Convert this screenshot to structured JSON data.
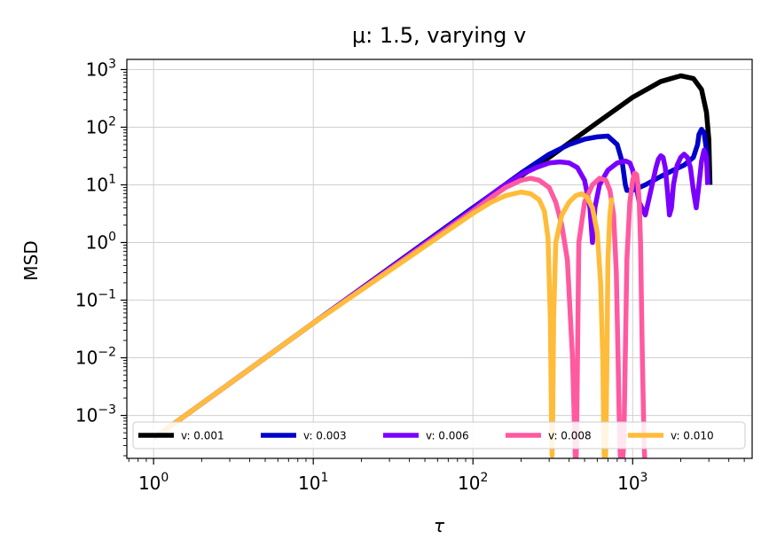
{
  "chart_data": {
    "type": "line",
    "title": "μ: 1.5, varying v",
    "xlabel": "τ",
    "ylabel": "MSD",
    "xscale": "log",
    "yscale": "log",
    "xlim": [
      0.68,
      5600
    ],
    "ylim": [
      0.00018,
      1500
    ],
    "grid": true,
    "legend_position": "lower",
    "x_ticks": [
      {
        "mant": "10",
        "exp": "0",
        "value": 1
      },
      {
        "mant": "10",
        "exp": "1",
        "value": 10
      },
      {
        "mant": "10",
        "exp": "2",
        "value": 100
      },
      {
        "mant": "10",
        "exp": "3",
        "value": 1000
      }
    ],
    "y_ticks": [
      {
        "mant": "10",
        "exp": "−3",
        "value": 0.001
      },
      {
        "mant": "10",
        "exp": "−2",
        "value": 0.01
      },
      {
        "mant": "10",
        "exp": "−1",
        "value": 0.1
      },
      {
        "mant": "10",
        "exp": "0",
        "value": 1
      },
      {
        "mant": "10",
        "exp": "1",
        "value": 10
      },
      {
        "mant": "10",
        "exp": "2",
        "value": 100
      },
      {
        "mant": "10",
        "exp": "3",
        "value": 1000
      }
    ],
    "series": [
      {
        "name": "v: 0.001",
        "color": "#000000",
        "x": [
          1,
          10,
          100,
          300,
          600,
          1000,
          1500,
          2000,
          2400,
          2700,
          2900,
          3000,
          3050
        ],
        "y": [
          0.0004,
          0.04,
          4,
          30,
          120,
          330,
          620,
          780,
          700,
          450,
          180,
          60,
          10
        ]
      },
      {
        "name": "v: 0.003",
        "color": "#0000c8",
        "x": [
          1,
          10,
          100,
          200,
          300,
          400,
          500,
          600,
          700,
          800,
          860,
          900,
          920,
          1000,
          1200,
          1500,
          1800,
          2100,
          2400,
          2550,
          2600,
          2700,
          2800,
          2900,
          2950,
          3000
        ],
        "y": [
          0.0004,
          0.04,
          4,
          16,
          34,
          50,
          62,
          68,
          70,
          50,
          25,
          10,
          8,
          8,
          10,
          14,
          18,
          22,
          30,
          50,
          75,
          92,
          80,
          40,
          15,
          10
        ]
      },
      {
        "name": "v: 0.006",
        "color": "#7a00ff",
        "x": [
          1,
          10,
          100,
          150,
          200,
          250,
          300,
          350,
          400,
          450,
          500,
          540,
          560,
          580,
          620,
          700,
          800,
          900,
          960,
          1000,
          1100,
          1200,
          1300,
          1400,
          1450,
          1500,
          1550,
          1600,
          1650,
          1700,
          1750,
          1800,
          1900,
          2000,
          2100,
          2200,
          2300,
          2400,
          2500,
          2600,
          2700,
          2800,
          2900,
          2950
        ],
        "y": [
          0.0004,
          0.04,
          3.8,
          9,
          15,
          20,
          24,
          25,
          24,
          20,
          12,
          4,
          1,
          4,
          10,
          18,
          24,
          26,
          24,
          18,
          5,
          3,
          8,
          20,
          28,
          32,
          30,
          20,
          8,
          3,
          4,
          10,
          22,
          30,
          34,
          30,
          20,
          8,
          4,
          10,
          26,
          40,
          30,
          10
        ]
      },
      {
        "name": "v: 0.008",
        "color": "#ff5aa0",
        "x": [
          1,
          10,
          100,
          130,
          160,
          200,
          230,
          260,
          300,
          330,
          360,
          390,
          420,
          435,
          440,
          445,
          460,
          500,
          560,
          620,
          680,
          720,
          760,
          790,
          810,
          830,
          850,
          880,
          920,
          960,
          1000,
          1030,
          1060,
          1080,
          1100,
          1120,
          1150,
          1180,
          1200
        ],
        "y": [
          0.0004,
          0.04,
          3.5,
          6,
          9,
          12,
          13,
          12,
          9,
          5,
          2,
          0.5,
          0.01,
          0.0003,
          0.0001,
          0.0003,
          1,
          5,
          10,
          13,
          12,
          8,
          3,
          0.3,
          0.01,
          0.0003,
          0.0001,
          0.0003,
          0.5,
          5,
          12,
          16,
          15,
          10,
          5,
          1,
          0.01,
          0.0003,
          0.0001
        ]
      },
      {
        "name": "v: 0.010",
        "color": "#ffbc3a",
        "x": [
          1,
          10,
          100,
          130,
          160,
          200,
          230,
          260,
          280,
          295,
          305,
          310,
          313,
          316,
          320,
          330,
          360,
          400,
          440,
          480,
          520,
          560,
          600,
          630,
          650,
          660,
          670,
          680,
          690,
          700,
          720,
          740
        ],
        "y": [
          0.0004,
          0.04,
          3.2,
          5,
          6.5,
          7.5,
          7,
          5.5,
          3.5,
          1.2,
          0.05,
          0.001,
          0.0002,
          0.001,
          0.05,
          1,
          3,
          5,
          6.5,
          7,
          6,
          4,
          1.5,
          0.2,
          0.01,
          0.0003,
          0.0001,
          0.0003,
          0.01,
          0.5,
          3,
          6
        ]
      }
    ]
  }
}
